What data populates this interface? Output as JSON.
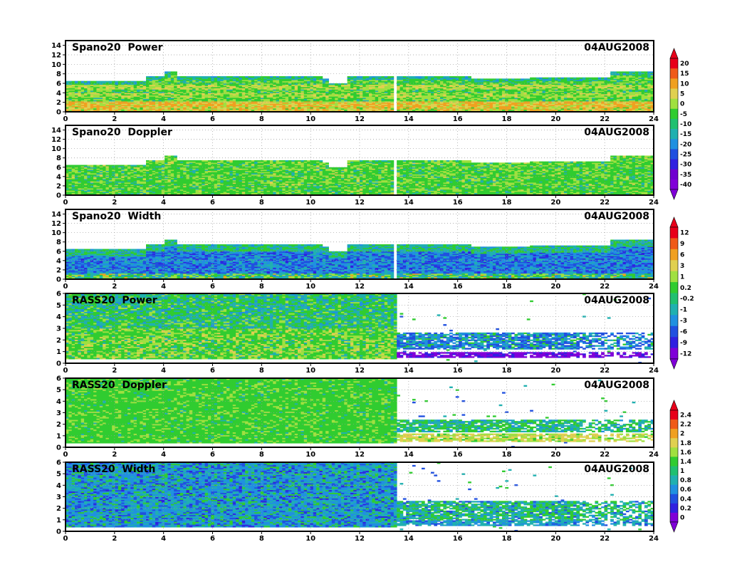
{
  "chart_data": [
    {
      "type": "heatmap",
      "title": "Spano20  Power",
      "date": "04AUG2008",
      "x_ticks": [
        "0",
        "2",
        "4",
        "6",
        "8",
        "10",
        "12",
        "14",
        "16",
        "18",
        "20",
        "22",
        "24"
      ],
      "xlim": [
        0,
        24
      ],
      "y_ticks": [
        "0",
        "2",
        "4",
        "6",
        "8",
        "10",
        "12",
        "14"
      ],
      "ylim": [
        0,
        15
      ],
      "grid": true,
      "colorbar": "power",
      "data_top_km": [
        [
          0,
          6.5
        ],
        [
          3.3,
          7.5
        ],
        [
          4,
          8.5
        ],
        [
          4.5,
          7.5
        ],
        [
          10.5,
          7
        ],
        [
          10.8,
          6
        ],
        [
          11.5,
          7.5
        ],
        [
          16.5,
          7
        ],
        [
          19,
          7.2
        ],
        [
          22.2,
          8.5
        ],
        [
          24,
          8.5
        ]
      ],
      "data_gap_hours": [
        13.45
      ],
      "layers_km": [
        1.5,
        3.5,
        5.5
      ]
    },
    {
      "type": "heatmap",
      "title": "Spano20  Doppler",
      "date": "04AUG2008",
      "x_ticks": [
        "0",
        "2",
        "4",
        "6",
        "8",
        "10",
        "12",
        "14",
        "16",
        "18",
        "20",
        "22",
        "24"
      ],
      "xlim": [
        0,
        24
      ],
      "y_ticks": [
        "0",
        "2",
        "4",
        "6",
        "8",
        "10",
        "12",
        "14"
      ],
      "ylim": [
        0,
        15
      ],
      "grid": true,
      "colorbar": "doppler_spano",
      "data_top_km": [
        [
          0,
          6.5
        ],
        [
          3.3,
          7.5
        ],
        [
          4,
          8.5
        ],
        [
          4.5,
          7.5
        ],
        [
          10.5,
          7
        ],
        [
          10.8,
          6
        ],
        [
          11.5,
          7.5
        ],
        [
          16.5,
          7
        ],
        [
          19,
          7.2
        ],
        [
          22.2,
          8.5
        ],
        [
          24,
          8.5
        ]
      ],
      "data_gap_hours": [
        13.45
      ]
    },
    {
      "type": "heatmap",
      "title": "Spano20  Width",
      "date": "04AUG2008",
      "x_ticks": [
        "0",
        "2",
        "4",
        "6",
        "8",
        "10",
        "12",
        "14",
        "16",
        "18",
        "20",
        "22",
        "24"
      ],
      "xlim": [
        0,
        24
      ],
      "y_ticks": [
        "0",
        "2",
        "4",
        "6",
        "8",
        "10",
        "12",
        "14"
      ],
      "ylim": [
        0,
        15
      ],
      "grid": true,
      "colorbar": "width_spano",
      "data_top_km": [
        [
          0,
          6.5
        ],
        [
          3.3,
          7.5
        ],
        [
          4,
          8.5
        ],
        [
          4.5,
          7.5
        ],
        [
          10.5,
          7
        ],
        [
          10.8,
          6
        ],
        [
          11.5,
          7.5
        ],
        [
          16.5,
          7
        ],
        [
          19,
          7.2
        ],
        [
          22.2,
          8.5
        ],
        [
          24,
          8.5
        ]
      ],
      "data_gap_hours": [
        13.45
      ]
    },
    {
      "type": "heatmap",
      "title": "RASS20  Power",
      "date": "04AUG2008",
      "x_ticks": [
        "0",
        "2",
        "4",
        "6",
        "8",
        "10",
        "12",
        "14",
        "16",
        "18",
        "20",
        "22",
        "24"
      ],
      "xlim": [
        0,
        24
      ],
      "y_ticks": [
        "0",
        "1",
        "2",
        "3",
        "4",
        "5",
        "6"
      ],
      "ylim": [
        0,
        6
      ],
      "grid": true,
      "colorbar": "power_rass",
      "full_coverage_until_hour": 13.5,
      "late_bands_km": [
        [
          0.5,
          0.9
        ],
        [
          1.2,
          2.6
        ]
      ]
    },
    {
      "type": "heatmap",
      "title": "RASS20  Doppler",
      "date": "04AUG2008",
      "x_ticks": [
        "0",
        "2",
        "4",
        "6",
        "8",
        "10",
        "12",
        "14",
        "16",
        "18",
        "20",
        "22",
        "24"
      ],
      "xlim": [
        0,
        24
      ],
      "y_ticks": [
        "0",
        "1",
        "2",
        "3",
        "4",
        "5",
        "6"
      ],
      "ylim": [
        0,
        6
      ],
      "grid": true,
      "colorbar": "doppler_rass",
      "full_coverage_until_hour": 13.5,
      "late_bands_km": [
        [
          0.5,
          1.2
        ],
        [
          1.3,
          2.4
        ]
      ]
    },
    {
      "type": "heatmap",
      "title": "RASS20  Width",
      "date": "04AUG2008",
      "x_ticks": [
        "0",
        "2",
        "4",
        "6",
        "8",
        "10",
        "12",
        "14",
        "16",
        "18",
        "20",
        "22",
        "24"
      ],
      "xlim": [
        0,
        24
      ],
      "y_ticks": [
        "0",
        "1",
        "2",
        "3",
        "4",
        "5",
        "6"
      ],
      "ylim": [
        0,
        6
      ],
      "grid": true,
      "colorbar": "width_rass",
      "full_coverage_until_hour": 13.5,
      "late_bands_km": [
        [
          0.5,
          0.9
        ],
        [
          1.0,
          2.6
        ]
      ]
    }
  ],
  "colorbars": [
    {
      "id": "power_doppler_spano",
      "labels": [
        "20",
        "15",
        "10",
        "5",
        "0",
        "-5",
        "-10",
        "-15",
        "-20",
        "-25",
        "-30",
        "-35",
        "-40"
      ],
      "colors": [
        "#e8001a",
        "#f05a18",
        "#f0a020",
        "#e0d050",
        "#a0e040",
        "#30cc30",
        "#20c070",
        "#20b0b0",
        "#2090e0",
        "#2050e0",
        "#3020e0",
        "#7000d0",
        "#8000d8"
      ]
    },
    {
      "id": "width_power_rass",
      "labels": [
        "12",
        "9",
        "6",
        "3",
        "1",
        "0.2",
        "-0.2",
        "-1",
        "-3",
        "-6",
        "-9",
        "-12"
      ],
      "colors": [
        "#e8001a",
        "#f05a18",
        "#f0a020",
        "#e0d050",
        "#a0e040",
        "#30cc30",
        "#20c070",
        "#20b0b0",
        "#2090e0",
        "#2050e0",
        "#3020e0",
        "#8000d8"
      ]
    },
    {
      "id": "rass_doppler_width",
      "labels": [
        "2.4",
        "2.2",
        "2",
        "1.8",
        "1.6",
        "1.4",
        "1",
        "0.8",
        "0.6",
        "0.4",
        "0.2",
        "0"
      ],
      "colors": [
        "#e8001a",
        "#f05a18",
        "#f0a020",
        "#e0d050",
        "#a0e040",
        "#30cc30",
        "#20c070",
        "#20b0b0",
        "#2090e0",
        "#2050e0",
        "#3020e0",
        "#8000d8"
      ]
    }
  ],
  "palette": {
    "red": "#e8001a",
    "orange": "#f0a020",
    "yellow": "#e0d050",
    "lime": "#a0e040",
    "green": "#30cc30",
    "teal": "#20b0b0",
    "cyan": "#2090e0",
    "blue": "#2050e0",
    "indigo": "#3020e0",
    "violet": "#8000d8"
  }
}
